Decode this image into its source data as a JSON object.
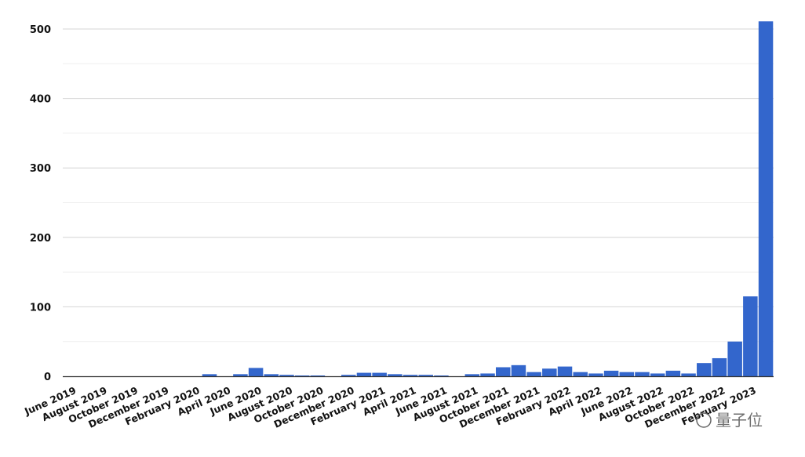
{
  "chart_data": {
    "type": "bar",
    "title": "",
    "xlabel": "",
    "ylabel": "",
    "ylim": [
      0,
      500
    ],
    "y_ticks": [
      0,
      100,
      200,
      300,
      400,
      500
    ],
    "grid": true,
    "bar_color": "#3366cc",
    "x_range": [
      "June 2019",
      "March 2023"
    ],
    "x_interval": "monthly",
    "x_tick_labels": [
      "June 2019",
      "August 2019",
      "October 2019",
      "December 2019",
      "February 2020",
      "April 2020",
      "June 2020",
      "August 2020",
      "October 2020",
      "December 2020",
      "February 2021",
      "April 2021",
      "June 2021",
      "August 2021",
      "October 2021",
      "December 2021",
      "February 2022",
      "April 2022",
      "June 2022",
      "August 2022",
      "October 2022",
      "December 2022",
      "February 2023"
    ],
    "values": [
      0,
      0,
      0,
      0,
      0,
      0,
      0,
      0,
      0,
      3,
      0,
      3,
      12,
      3,
      2,
      1,
      1,
      0,
      2,
      5,
      5,
      3,
      2,
      2,
      1,
      0,
      3,
      4,
      13,
      16,
      6,
      11,
      14,
      6,
      4,
      8,
      6,
      6,
      4,
      8,
      4,
      19,
      26,
      50,
      115,
      511
    ]
  },
  "watermark": "量子位"
}
